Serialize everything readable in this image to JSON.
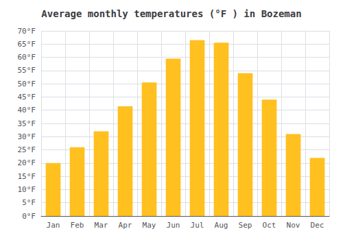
{
  "chart_data": {
    "type": "bar",
    "title": "Average monthly temperatures (°F ) in Bozeman",
    "categories": [
      "Jan",
      "Feb",
      "Mar",
      "Apr",
      "May",
      "Jun",
      "Jul",
      "Aug",
      "Sep",
      "Oct",
      "Nov",
      "Dec"
    ],
    "values": [
      20,
      26,
      32,
      41.5,
      50.5,
      59.5,
      66.5,
      65.5,
      54,
      44,
      31,
      22
    ],
    "color": "#FFC020",
    "ylim": [
      0,
      70
    ],
    "yticks": [
      {
        "value": 0,
        "label": "0°F"
      },
      {
        "value": 5,
        "label": "5°F"
      },
      {
        "value": 10,
        "label": "10°F"
      },
      {
        "value": 15,
        "label": "15°F"
      },
      {
        "value": 20,
        "label": "20°F"
      },
      {
        "value": 25,
        "label": "25°F"
      },
      {
        "value": 30,
        "label": "30°F"
      },
      {
        "value": 35,
        "label": "35°F"
      },
      {
        "value": 40,
        "label": "40°F"
      },
      {
        "value": 45,
        "label": "45°F"
      },
      {
        "value": 50,
        "label": "50°F"
      },
      {
        "value": 55,
        "label": "55°F"
      },
      {
        "value": 60,
        "label": "60°F"
      },
      {
        "value": 65,
        "label": "65°F"
      },
      {
        "value": 70,
        "label": "70°F"
      }
    ],
    "grid": true
  }
}
